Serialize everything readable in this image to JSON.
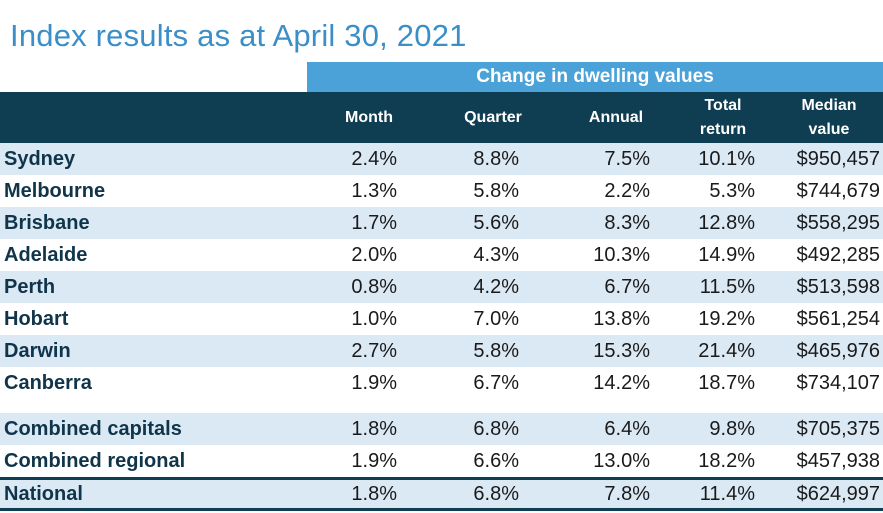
{
  "title": "Index results as at April 30, 2021",
  "band_label": "Change in dwelling values",
  "headers": {
    "month": "Month",
    "quarter": "Quarter",
    "annual": "Annual",
    "total_return_1": "Total",
    "total_return_2": "return",
    "median_1": "Median",
    "median_2": "value"
  },
  "rows": [
    {
      "name": "Sydney",
      "month": "2.4%",
      "quarter": "8.8%",
      "annual": "7.5%",
      "total": "10.1%",
      "median": "$950,457"
    },
    {
      "name": "Melbourne",
      "month": "1.3%",
      "quarter": "5.8%",
      "annual": "2.2%",
      "total": "5.3%",
      "median": "$744,679"
    },
    {
      "name": "Brisbane",
      "month": "1.7%",
      "quarter": "5.6%",
      "annual": "8.3%",
      "total": "12.8%",
      "median": "$558,295"
    },
    {
      "name": "Adelaide",
      "month": "2.0%",
      "quarter": "4.3%",
      "annual": "10.3%",
      "total": "14.9%",
      "median": "$492,285"
    },
    {
      "name": "Perth",
      "month": "0.8%",
      "quarter": "4.2%",
      "annual": "6.7%",
      "total": "11.5%",
      "median": "$513,598"
    },
    {
      "name": "Hobart",
      "month": "1.0%",
      "quarter": "7.0%",
      "annual": "13.8%",
      "total": "19.2%",
      "median": "$561,254"
    },
    {
      "name": "Darwin",
      "month": "2.7%",
      "quarter": "5.8%",
      "annual": "15.3%",
      "total": "21.4%",
      "median": "$465,976"
    },
    {
      "name": "Canberra",
      "month": "1.9%",
      "quarter": "6.7%",
      "annual": "14.2%",
      "total": "18.7%",
      "median": "$734,107"
    }
  ],
  "combined": [
    {
      "name": "Combined capitals",
      "month": "1.8%",
      "quarter": "6.8%",
      "annual": "6.4%",
      "total": "9.8%",
      "median": "$705,375"
    },
    {
      "name": "Combined regional",
      "month": "1.9%",
      "quarter": "6.6%",
      "annual": "13.0%",
      "total": "18.2%",
      "median": "$457,938"
    }
  ],
  "national": {
    "name": "National",
    "month": "1.8%",
    "quarter": "6.8%",
    "annual": "7.8%",
    "total": "11.4%",
    "median": "$624,997"
  },
  "colors": {
    "title": "#3a8fc9",
    "band": "#4aa2d9",
    "header": "#0f3d52",
    "shade": "#dbe9f5"
  }
}
